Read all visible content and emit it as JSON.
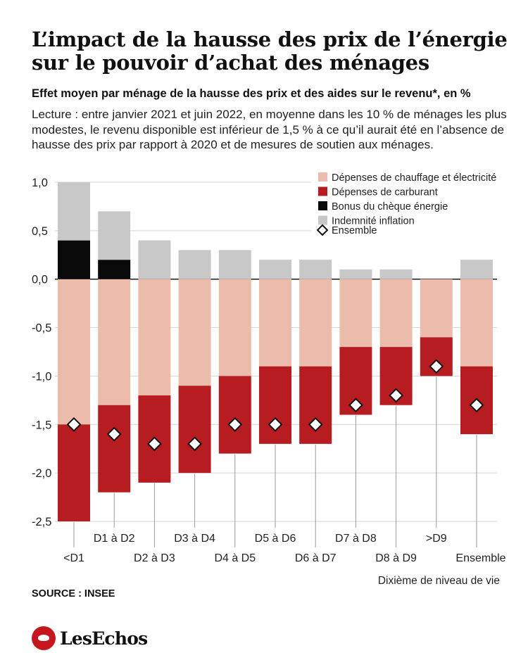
{
  "header": {
    "title_line1": "L’impact de la hausse des prix de l’énergie",
    "title_line2": "sur le pouvoir d’achat des ménages",
    "subtitle": "Effet moyen par ménage de la hausse des prix et des aides sur le revenu*, en %",
    "note": "Lecture : entre janvier 2021 et juin 2022, en moyenne dans les 10 % de ménages les plus modestes, le revenu disponible est inférieur de 1,5 % à ce qu’il aurait été en l’absence de hausse des prix par rapport à 2020 et de mesures de soutien aux ménages."
  },
  "footer": {
    "source": "SOURCE : INSEE",
    "brand": "LesEchos"
  },
  "colors": {
    "chauffage": "#ebbcab",
    "carburant": "#b71c20",
    "cheque": "#0a0a0a",
    "indemnite": "#c8c8c8",
    "zero_line": "#1a1a1a",
    "grid": "#d4d4d4"
  },
  "chart_data": {
    "type": "bar",
    "stacked": true,
    "categories": [
      "<D1",
      "D1 à D2",
      "D2 à D3",
      "D3 à D4",
      "D4 à D5",
      "D5 à D6",
      "D6 à D7",
      "D7 à D8",
      "D8 à D9",
      ">D9",
      "Ensemble"
    ],
    "series": [
      {
        "name": "Dépenses de chauffage et électricité",
        "values": [
          -1.5,
          -1.3,
          -1.2,
          -1.1,
          -1.0,
          -0.9,
          -0.9,
          -0.7,
          -0.7,
          -0.6,
          -0.9
        ]
      },
      {
        "name": "Dépenses de carburant",
        "values": [
          -1.0,
          -0.9,
          -0.9,
          -0.9,
          -0.8,
          -0.8,
          -0.8,
          -0.7,
          -0.6,
          -0.4,
          -0.7
        ]
      },
      {
        "name": "Bonus du chèque énergie",
        "values": [
          0.4,
          0.2,
          0,
          0,
          0,
          0,
          0,
          0,
          0,
          0,
          0
        ]
      },
      {
        "name": "Indemnité inflation",
        "values": [
          0.6,
          0.5,
          0.4,
          0.3,
          0.3,
          0.2,
          0.2,
          0.1,
          0.1,
          0,
          0.2
        ]
      }
    ],
    "total": {
      "name": "Ensemble",
      "values": [
        -1.5,
        -1.6,
        -1.7,
        -1.7,
        -1.5,
        -1.5,
        -1.5,
        -1.3,
        -1.2,
        -0.9,
        -1.3
      ]
    },
    "y_ticks": [
      "1,0",
      "0,5",
      "0,0",
      "-0,5",
      "-1,0",
      "-1,5",
      "-2,0",
      "-2,5"
    ],
    "y_tick_values": [
      1.0,
      0.5,
      0.0,
      -0.5,
      -1.0,
      -1.5,
      -2.0,
      -2.5
    ],
    "ylim": [
      -2.5,
      1.0
    ],
    "xlabel": "Dixième de niveau de vie",
    "ylabel": "",
    "grid": true,
    "legend": "top-right"
  }
}
